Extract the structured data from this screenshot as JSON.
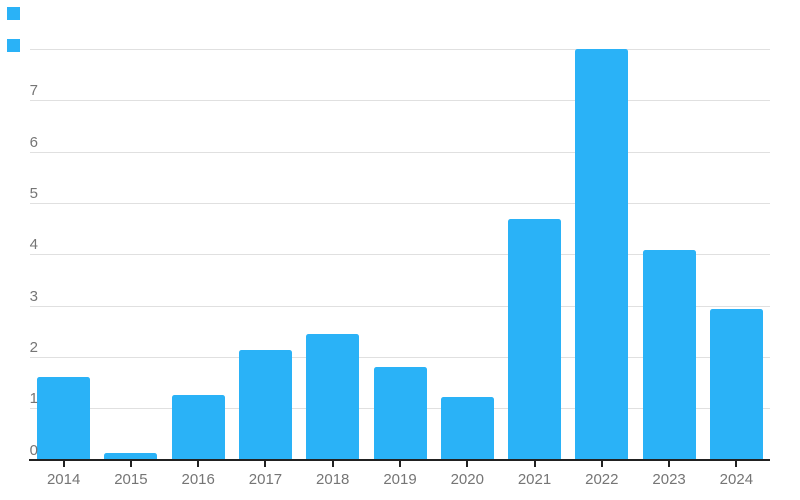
{
  "chart_data": {
    "type": "bar",
    "title": "",
    "xlabel": "",
    "ylabel": "",
    "categories": [
      "2014",
      "2015",
      "2016",
      "2017",
      "2018",
      "2019",
      "2020",
      "2021",
      "2022",
      "2023",
      "2024"
    ],
    "values": [
      1.62,
      0.13,
      1.26,
      2.15,
      2.45,
      1.81,
      1.22,
      4.7,
      8.0,
      4.1,
      2.94
    ],
    "ylim": [
      0,
      8.2
    ],
    "yticks": [
      0,
      1,
      2,
      3,
      4,
      5,
      6,
      7
    ],
    "top_unlabeled_gridline_value": 8,
    "grid": true,
    "legend_position": "none",
    "bar_color": "#2ab2f7",
    "axis_line_color": "#212121",
    "gridline_color": "#e0e0e0",
    "label_color": "#757575"
  },
  "decorations": {
    "top_left_squares": {
      "count": 2,
      "color": "#2ab2f7"
    }
  }
}
